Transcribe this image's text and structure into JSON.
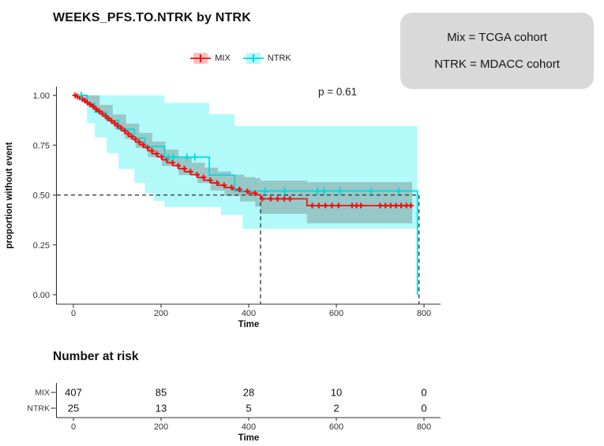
{
  "header": {
    "title": "WEEKS_PFS.TO.NTRK by NTRK"
  },
  "legend": {
    "items": [
      {
        "label": "MIX",
        "color": "#ee1111",
        "fill": "rgba(255,70,70,0.35)"
      },
      {
        "label": "NTRK",
        "color": "#00d9d9",
        "fill": "rgba(0,235,235,0.30)"
      }
    ]
  },
  "info_box": {
    "bg": "#d9d9d9",
    "line1": "Mix = TCGA cohort",
    "line2": "NTRK = MDACC cohort"
  },
  "annotations": {
    "p_value": "p = 0.61"
  },
  "risk_section": {
    "heading": "Number at risk"
  },
  "chart_data": {
    "type": "line",
    "subtype": "kaplan-meier-survival",
    "title": "WEEKS_PFS.TO.NTRK by NTRK",
    "xlabel": "Time",
    "ylabel": "proportion without event",
    "p_value_text": "p = 0.61",
    "xlim": [
      0,
      800
    ],
    "ylim": [
      0.0,
      1.0
    ],
    "x_ticks": [
      0,
      200,
      400,
      600,
      800
    ],
    "y_ticks": [
      0.0,
      0.25,
      0.5,
      0.75,
      1.0
    ],
    "y_tick_labels": [
      "0.00",
      "0.25",
      "0.50",
      "0.75",
      "1.00"
    ],
    "reference_line_y": 0.5,
    "axis_color": "#333333",
    "dash_color": "#2b2b2b",
    "series": [
      {
        "name": "MIX",
        "line_color": "#ee1111",
        "band_color": "rgba(110,125,125,0.40)",
        "censor_half": 3.5,
        "censor_stroke": 2.1,
        "median_time": 427,
        "steps": [
          [
            0,
            1.0
          ],
          [
            6,
            0.995
          ],
          [
            12,
            0.99
          ],
          [
            18,
            0.982
          ],
          [
            24,
            0.974
          ],
          [
            30,
            0.964
          ],
          [
            36,
            0.954
          ],
          [
            42,
            0.944
          ],
          [
            48,
            0.932
          ],
          [
            54,
            0.92
          ],
          [
            60,
            0.908
          ],
          [
            67,
            0.896
          ],
          [
            74,
            0.884
          ],
          [
            81,
            0.872
          ],
          [
            88,
            0.86
          ],
          [
            95,
            0.848
          ],
          [
            102,
            0.836
          ],
          [
            110,
            0.822
          ],
          [
            118,
            0.808
          ],
          [
            126,
            0.794
          ],
          [
            134,
            0.78
          ],
          [
            142,
            0.766
          ],
          [
            151,
            0.752
          ],
          [
            160,
            0.738
          ],
          [
            170,
            0.722
          ],
          [
            180,
            0.707
          ],
          [
            191,
            0.692
          ],
          [
            202,
            0.677
          ],
          [
            214,
            0.662
          ],
          [
            227,
            0.647
          ],
          [
            240,
            0.632
          ],
          [
            254,
            0.617
          ],
          [
            268,
            0.602
          ],
          [
            283,
            0.588
          ],
          [
            298,
            0.574
          ],
          [
            313,
            0.561
          ],
          [
            329,
            0.549
          ],
          [
            345,
            0.538
          ],
          [
            362,
            0.528
          ],
          [
            380,
            0.518
          ],
          [
            398,
            0.509
          ],
          [
            415,
            0.501
          ],
          [
            427,
            0.481
          ],
          [
            533,
            0.447
          ],
          [
            773,
            0.447
          ]
        ],
        "censor_times": [
          4,
          9,
          14,
          20,
          26,
          32,
          38,
          45,
          52,
          59,
          66,
          73,
          80,
          87,
          94,
          101,
          109,
          117,
          125,
          133,
          141,
          150,
          159,
          169,
          179,
          190,
          201,
          213,
          226,
          239,
          253,
          267,
          282,
          297,
          312,
          328,
          344,
          361,
          379,
          397,
          414,
          431,
          450,
          466,
          481,
          494,
          545,
          560,
          575,
          590,
          605,
          636,
          646,
          656,
          700,
          712,
          724,
          736,
          748,
          760,
          770
        ],
        "band_upper": [
          [
            0,
            1.0
          ],
          [
            30,
            1.0
          ],
          [
            60,
            0.952
          ],
          [
            90,
            0.904
          ],
          [
            120,
            0.858
          ],
          [
            150,
            0.812
          ],
          [
            180,
            0.768
          ],
          [
            210,
            0.728
          ],
          [
            240,
            0.692
          ],
          [
            270,
            0.662
          ],
          [
            300,
            0.638
          ],
          [
            330,
            0.618
          ],
          [
            360,
            0.602
          ],
          [
            390,
            0.59
          ],
          [
            415,
            0.585
          ],
          [
            427,
            0.572
          ],
          [
            533,
            0.565
          ],
          [
            773,
            0.565
          ]
        ],
        "band_lower": [
          [
            0,
            1.0
          ],
          [
            18,
            0.978
          ],
          [
            36,
            0.948
          ],
          [
            54,
            0.912
          ],
          [
            74,
            0.872
          ],
          [
            95,
            0.828
          ],
          [
            118,
            0.782
          ],
          [
            142,
            0.736
          ],
          [
            170,
            0.69
          ],
          [
            202,
            0.645
          ],
          [
            240,
            0.6
          ],
          [
            283,
            0.56
          ],
          [
            313,
            0.522
          ],
          [
            345,
            0.495
          ],
          [
            380,
            0.468
          ],
          [
            415,
            0.442
          ],
          [
            427,
            0.405
          ],
          [
            533,
            0.358
          ],
          [
            773,
            0.358
          ]
        ]
      },
      {
        "name": "NTRK",
        "line_color": "#00d9d9",
        "band_color": "rgba(0,240,240,0.30)",
        "censor_half": 4.5,
        "censor_stroke": 1.9,
        "median_time": 785,
        "steps": [
          [
            0,
            1.0
          ],
          [
            31,
            0.958
          ],
          [
            49,
            0.916
          ],
          [
            76,
            0.874
          ],
          [
            103,
            0.83
          ],
          [
            139,
            0.786
          ],
          [
            163,
            0.744
          ],
          [
            208,
            0.69
          ],
          [
            310,
            0.6
          ],
          [
            368,
            0.52
          ],
          [
            785,
            0.52
          ],
          [
            785,
            0.0
          ]
        ],
        "censor_times": [
          18,
          216,
          228,
          259,
          277,
          437,
          482,
          557,
          572,
          608,
          680,
          742
        ],
        "band_upper": [
          [
            0,
            1.0
          ],
          [
            163,
            1.0
          ],
          [
            208,
            0.962
          ],
          [
            310,
            0.905
          ],
          [
            368,
            0.846
          ],
          [
            785,
            0.846
          ]
        ],
        "band_lower": [
          [
            0,
            1.0
          ],
          [
            31,
            0.86
          ],
          [
            49,
            0.79
          ],
          [
            76,
            0.71
          ],
          [
            103,
            0.63
          ],
          [
            139,
            0.56
          ],
          [
            163,
            0.51
          ],
          [
            183,
            0.47
          ],
          [
            208,
            0.44
          ],
          [
            337,
            0.4
          ],
          [
            386,
            0.33
          ],
          [
            785,
            0.33
          ]
        ]
      }
    ],
    "risk_table": {
      "heading": "Number at risk",
      "xlabel": "Time",
      "times": [
        0,
        200,
        400,
        600,
        800
      ],
      "rows": [
        {
          "name": "MIX",
          "counts": [
            407,
            85,
            28,
            10,
            0
          ]
        },
        {
          "name": "NTRK",
          "counts": [
            25,
            13,
            5,
            2,
            0
          ]
        }
      ]
    }
  }
}
